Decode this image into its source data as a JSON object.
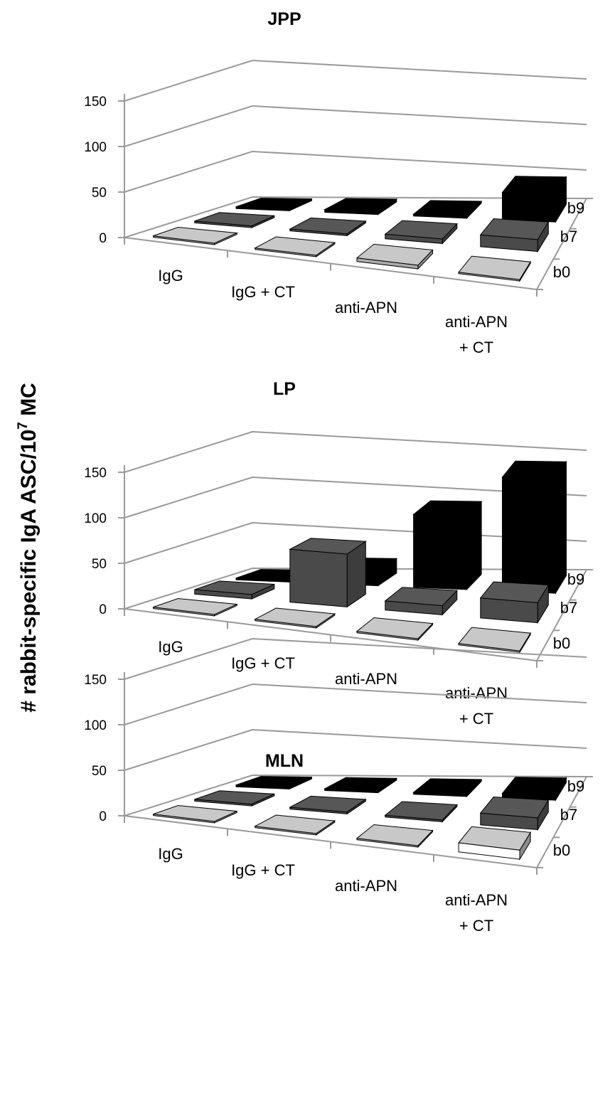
{
  "y_axis_label": {
    "main": "# rabbit-specific IgA ASC/10",
    "superscript": "7",
    "suffix": " MC"
  },
  "chart_data": [
    {
      "type": "bar3d",
      "title": "JPP",
      "categories": [
        "IgG",
        "IgG + CT",
        "anti-APN",
        "anti-APN + CT"
      ],
      "depth_categories": [
        "b0",
        "b7",
        "b9"
      ],
      "yticks": [
        "0",
        "50",
        "100",
        "150"
      ],
      "ylim": [
        0,
        150
      ],
      "series": [
        {
          "name": "b0",
          "color": "#c8c8c8",
          "values": [
            1,
            1,
            4,
            1
          ]
        },
        {
          "name": "b7",
          "color": "#575757",
          "values": [
            2,
            2,
            5,
            13
          ]
        },
        {
          "name": "b9",
          "color": "#000000",
          "values": [
            2,
            3,
            2,
            30
          ]
        }
      ]
    },
    {
      "type": "bar3d",
      "title": "LP",
      "categories": [
        "IgG",
        "IgG + CT",
        "anti-APN",
        "anti-APN + CT"
      ],
      "depth_categories": [
        "b0",
        "b7",
        "b9"
      ],
      "yticks": [
        "0",
        "50",
        "100",
        "150"
      ],
      "ylim": [
        0,
        150
      ],
      "series": [
        {
          "name": "b0",
          "color": "#c8c8c8",
          "values": [
            1,
            1,
            1,
            1
          ]
        },
        {
          "name": "b7",
          "color": "#575757",
          "values": [
            5,
            58,
            10,
            22
          ]
        },
        {
          "name": "b9",
          "color": "#000000",
          "values": [
            2,
            16,
            80,
            125
          ]
        }
      ]
    },
    {
      "type": "bar3d",
      "title": "MLN",
      "categories": [
        "IgG",
        "IgG + CT",
        "anti-APN",
        "anti-APN + CT"
      ],
      "depth_categories": [
        "b0",
        "b7",
        "b9"
      ],
      "yticks": [
        "0",
        "50",
        "100",
        "150"
      ],
      "ylim": [
        0,
        150
      ],
      "series": [
        {
          "name": "b0",
          "color": "#c8c8c8",
          "values": [
            1,
            1,
            1,
            10
          ]
        },
        {
          "name": "b7",
          "color": "#575757",
          "values": [
            2,
            2,
            2,
            13
          ]
        },
        {
          "name": "b9",
          "color": "#000000",
          "values": [
            2,
            2,
            2,
            5
          ]
        }
      ]
    }
  ]
}
